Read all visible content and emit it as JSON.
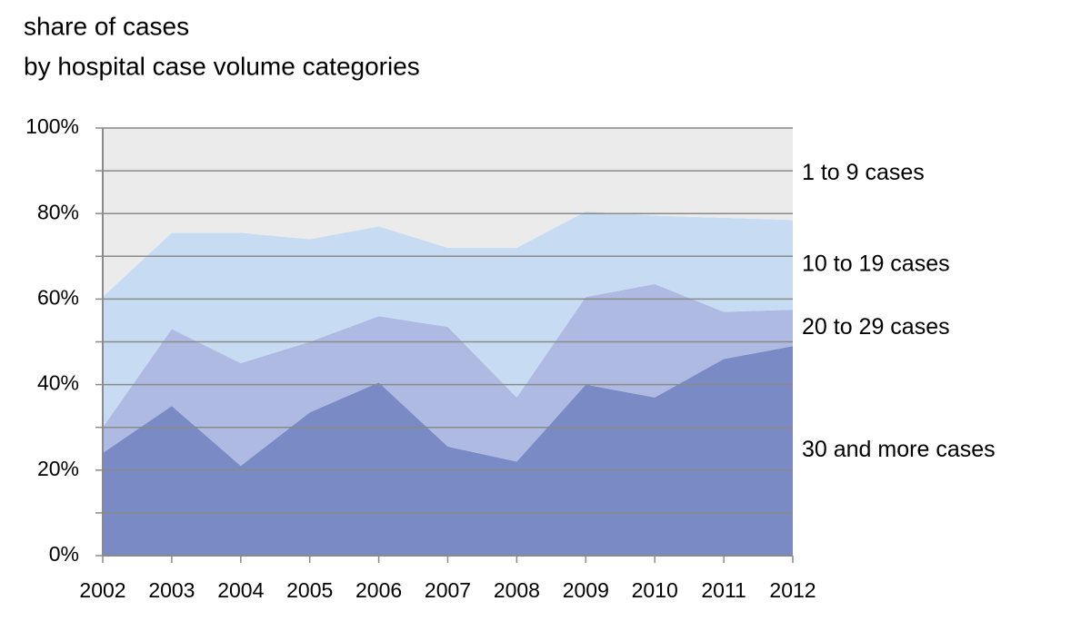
{
  "chart_data": {
    "type": "stacked_area",
    "title": "share of cases",
    "subtitle": "by hospital case volume categories",
    "categories": [
      "2002",
      "2003",
      "2004",
      "2005",
      "2006",
      "2007",
      "2008",
      "2009",
      "2010",
      "2011",
      "2012"
    ],
    "series": [
      {
        "name": "30 and more cases",
        "color": "#7a8ac5",
        "values": [
          24,
          35,
          21,
          33.5,
          40.5,
          25.5,
          22,
          40,
          37,
          46,
          49
        ]
      },
      {
        "name": "20 to 29 cases",
        "color": "#aebae1",
        "values": [
          6,
          18,
          24,
          16.5,
          15.5,
          28,
          15,
          20.5,
          26.5,
          11,
          8.5
        ]
      },
      {
        "name": "10 to 19 cases",
        "color": "#c7dcf3",
        "values": [
          30.5,
          22.5,
          30.5,
          24,
          21,
          18.5,
          35,
          20,
          16,
          22,
          21
        ]
      },
      {
        "name": "1 to 9 cases",
        "color": "#ebebeb",
        "values": [
          39.5,
          24.5,
          24.5,
          26,
          23,
          28,
          28,
          19.5,
          20.5,
          21,
          21.5
        ]
      }
    ],
    "ylim": [
      0,
      100
    ],
    "yticks": [
      {
        "value": 0,
        "label": "0%"
      },
      {
        "value": 20,
        "label": "20%"
      },
      {
        "value": 40,
        "label": "40%"
      },
      {
        "value": 60,
        "label": "60%"
      },
      {
        "value": 80,
        "label": "80%"
      },
      {
        "value": 100,
        "label": "100%"
      }
    ],
    "minor_yticks": [
      10,
      30,
      50,
      70,
      90
    ],
    "grid": true
  }
}
